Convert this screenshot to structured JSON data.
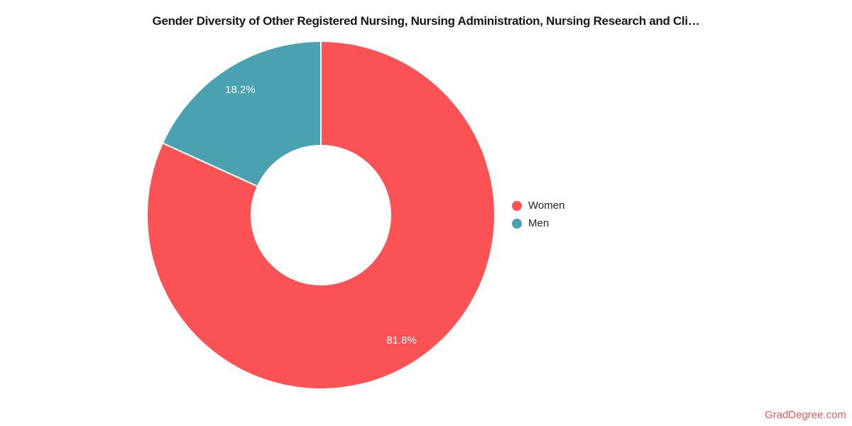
{
  "chart_data": {
    "type": "pie",
    "donut": true,
    "hole_ratio": 0.4,
    "title": "Gender Diversity of Other Registered Nursing, Nursing Administration, Nursing Research and Cli…",
    "categories": [
      "Women",
      "Men"
    ],
    "values": [
      81.8,
      18.2
    ],
    "slice_labels": [
      "81.8%",
      "18.2%"
    ],
    "colors": [
      "#FB5355",
      "#4AA1AF"
    ],
    "slice_border_color": "#ffffff",
    "legend_position": "right",
    "start_angle_deg": 0,
    "direction": "clockwise",
    "label_color": "#ffffff",
    "background_color": "#ffffff"
  },
  "watermark": {
    "label": "GradDegree.com",
    "color": "#F0565C"
  }
}
